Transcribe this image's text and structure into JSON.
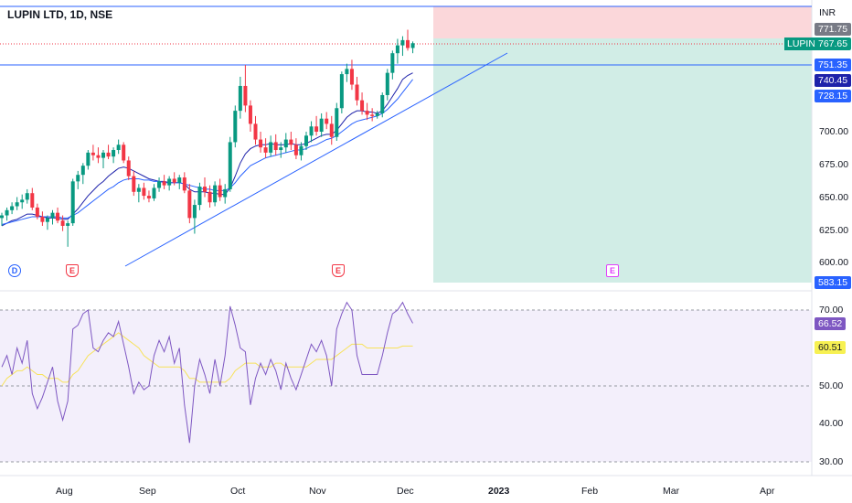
{
  "symbol_title": "LUPIN LTD, 1D, NSE",
  "currency": "INR",
  "symbol_tag": "LUPIN",
  "price_axis_labels": [
    "700.00",
    "675.00",
    "650.00",
    "625.00",
    "600.00"
  ],
  "price_tags": [
    {
      "label": "771.75",
      "value": 771.75,
      "color": "#787b86"
    },
    {
      "label": "767.65",
      "value": 767.65,
      "color": "#089981"
    },
    {
      "label": "751.35",
      "value": 751.35,
      "color": "#2962ff"
    },
    {
      "label": "740.45",
      "value": 740.45,
      "color": "#1e22aa"
    },
    {
      "label": "728.15",
      "value": 728.15,
      "color": "#2962ff"
    },
    {
      "label": "583.15",
      "value": 583.15,
      "color": "#2962ff"
    }
  ],
  "rsi_axis_labels": [
    "70.00",
    "50.00",
    "40.00",
    "30.00"
  ],
  "rsi_tags": [
    {
      "label": "66.52",
      "value": 66.52,
      "color": "#7e57c2",
      "text_color": "#ffffff"
    },
    {
      "label": "60.51",
      "value": 60.51,
      "color": "#f7f152",
      "text_color": "#131722"
    }
  ],
  "time_axis_labels": [
    "Aug",
    "Sep",
    "Oct",
    "Nov",
    "Dec",
    "2023",
    "Feb",
    "Mar",
    "Apr"
  ],
  "events": [
    "D",
    "E",
    "E",
    "E"
  ],
  "colors": {
    "up": "#089981",
    "down": "#f23645",
    "ma1": "#1e22aa",
    "ma2": "#2962ff",
    "trendline": "#2962ff",
    "rsi": "#7e57c2",
    "rsi_ma": "#f7e25a",
    "target_zone": "#d1ede6",
    "stop_zone": "#fbd7da"
  },
  "chart_data": {
    "type": "candlestick",
    "title": "LUPIN LTD, 1D, NSE",
    "price_range": [
      583,
      778
    ],
    "levels": {
      "stop": 777.5,
      "entry": 768.5,
      "support": 751.35,
      "target": 583.15
    },
    "candles": [
      [
        634,
        638,
        628,
        636
      ],
      [
        636,
        642,
        632,
        640
      ],
      [
        640,
        646,
        637,
        643
      ],
      [
        643,
        650,
        640,
        646
      ],
      [
        646,
        652,
        641,
        648
      ],
      [
        648,
        656,
        645,
        653
      ],
      [
        653,
        657,
        640,
        642
      ],
      [
        642,
        645,
        633,
        635
      ],
      [
        635,
        639,
        628,
        631
      ],
      [
        631,
        636,
        625,
        634
      ],
      [
        634,
        640,
        629,
        638
      ],
      [
        638,
        642,
        630,
        632
      ],
      [
        632,
        636,
        624,
        628
      ],
      [
        628,
        632,
        612,
        630
      ],
      [
        630,
        664,
        628,
        662
      ],
      [
        662,
        670,
        656,
        667
      ],
      [
        667,
        676,
        660,
        674
      ],
      [
        674,
        686,
        671,
        684
      ],
      [
        684,
        690,
        678,
        682
      ],
      [
        682,
        688,
        676,
        680
      ],
      [
        680,
        686,
        672,
        684
      ],
      [
        684,
        690,
        679,
        681
      ],
      [
        681,
        688,
        676,
        686
      ],
      [
        686,
        694,
        683,
        690
      ],
      [
        690,
        692,
        676,
        678
      ],
      [
        678,
        681,
        663,
        666
      ],
      [
        666,
        670,
        651,
        654
      ],
      [
        654,
        660,
        646,
        657
      ],
      [
        657,
        661,
        648,
        651
      ],
      [
        651,
        655,
        646,
        649
      ],
      [
        649,
        660,
        647,
        657
      ],
      [
        657,
        665,
        654,
        662
      ],
      [
        662,
        667,
        656,
        659
      ],
      [
        659,
        666,
        655,
        664
      ],
      [
        664,
        669,
        659,
        661
      ],
      [
        661,
        667,
        656,
        665
      ],
      [
        665,
        669,
        653,
        655
      ],
      [
        655,
        660,
        630,
        634
      ],
      [
        634,
        648,
        622,
        644
      ],
      [
        644,
        661,
        640,
        658
      ],
      [
        658,
        665,
        650,
        654
      ],
      [
        654,
        659,
        642,
        646
      ],
      [
        646,
        662,
        643,
        659
      ],
      [
        659,
        664,
        647,
        650
      ],
      [
        650,
        660,
        645,
        656
      ],
      [
        656,
        696,
        654,
        692
      ],
      [
        692,
        720,
        688,
        716
      ],
      [
        716,
        742,
        710,
        735
      ],
      [
        735,
        751,
        715,
        720
      ],
      [
        720,
        724,
        700,
        706
      ],
      [
        706,
        712,
        690,
        694
      ],
      [
        694,
        700,
        684,
        688
      ],
      [
        688,
        695,
        680,
        684
      ],
      [
        684,
        697,
        681,
        692
      ],
      [
        692,
        698,
        682,
        686
      ],
      [
        686,
        692,
        680,
        688
      ],
      [
        688,
        699,
        684,
        694
      ],
      [
        694,
        700,
        686,
        690
      ],
      [
        690,
        695,
        679,
        682
      ],
      [
        682,
        692,
        678,
        689
      ],
      [
        689,
        700,
        686,
        697
      ],
      [
        697,
        708,
        692,
        704
      ],
      [
        704,
        712,
        697,
        700
      ],
      [
        700,
        714,
        696,
        710
      ],
      [
        710,
        715,
        702,
        706
      ],
      [
        706,
        712,
        690,
        696
      ],
      [
        696,
        722,
        693,
        718
      ],
      [
        718,
        746,
        714,
        744
      ],
      [
        744,
        752,
        738,
        748
      ],
      [
        748,
        755,
        732,
        736
      ],
      [
        736,
        742,
        720,
        724
      ],
      [
        724,
        730,
        713,
        716
      ],
      [
        716,
        722,
        709,
        713
      ],
      [
        713,
        718,
        708,
        712
      ],
      [
        712,
        716,
        710,
        714
      ],
      [
        714,
        730,
        711,
        728
      ],
      [
        728,
        748,
        724,
        745
      ],
      [
        745,
        762,
        740,
        760
      ],
      [
        760,
        771,
        752,
        766
      ],
      [
        766,
        773,
        758,
        770
      ],
      [
        770,
        778,
        762,
        764
      ],
      [
        764,
        769,
        760,
        767.65
      ]
    ],
    "ma_fast": [
      628,
      630,
      632,
      633,
      635,
      637,
      637,
      636,
      635,
      634,
      634,
      634,
      633,
      633,
      637,
      641,
      646,
      651,
      655,
      659,
      662,
      666,
      669,
      672,
      673,
      672,
      670,
      668,
      666,
      664,
      663,
      662,
      662,
      661,
      661,
      661,
      660,
      656,
      654,
      654,
      654,
      653,
      653,
      652,
      652,
      657,
      666,
      676,
      683,
      687,
      689,
      690,
      690,
      691,
      690,
      690,
      690,
      691,
      690,
      690,
      691,
      693,
      695,
      697,
      698,
      698,
      701,
      706,
      711,
      714,
      716,
      716,
      715,
      715,
      714,
      716,
      721,
      727,
      733,
      740,
      743,
      745
    ],
    "ma_slow": [
      629,
      630,
      631,
      632,
      633,
      634,
      635,
      635,
      635,
      635,
      635,
      635,
      634,
      634,
      636,
      638,
      641,
      644,
      647,
      650,
      653,
      656,
      658,
      661,
      663,
      664,
      664,
      664,
      663,
      663,
      662,
      662,
      661,
      661,
      661,
      661,
      660,
      659,
      658,
      657,
      656,
      656,
      655,
      655,
      655,
      657,
      661,
      666,
      670,
      674,
      676,
      678,
      680,
      681,
      682,
      683,
      684,
      685,
      686,
      686,
      687,
      689,
      690,
      692,
      694,
      695,
      697,
      700,
      703,
      706,
      708,
      709,
      710,
      711,
      712,
      714,
      717,
      721,
      725,
      730,
      735,
      740
    ],
    "rsi": [
      55,
      58,
      53,
      60,
      56,
      62,
      48,
      44,
      47,
      51,
      55,
      46,
      41,
      46,
      65,
      66,
      69,
      70,
      60,
      59,
      62,
      64,
      63,
      67,
      61,
      55,
      48,
      51,
      49,
      50,
      58,
      62,
      59,
      63,
      56,
      60,
      45,
      35,
      50,
      57,
      53,
      48,
      57,
      50,
      58,
      71,
      66,
      60,
      59,
      45,
      52,
      56,
      53,
      57,
      54,
      49,
      56,
      52,
      49,
      53,
      57,
      61,
      59,
      62,
      58,
      50,
      65,
      69,
      72,
      70,
      58,
      53,
      53,
      53,
      53,
      58,
      64,
      69,
      70,
      72,
      69,
      66.52
    ],
    "rsi_ma": [
      50,
      52,
      53,
      54,
      54,
      55,
      54,
      53,
      53,
      52,
      52,
      52,
      51,
      51,
      53,
      54,
      56,
      58,
      59,
      60,
      61,
      62,
      63,
      64,
      63,
      62,
      61,
      60,
      58,
      57,
      56,
      55,
      55,
      55,
      55,
      55,
      54,
      52,
      52,
      51,
      51,
      51,
      51,
      51,
      51,
      52,
      54,
      55,
      56,
      56,
      56,
      55,
      55,
      55,
      56,
      56,
      55,
      55,
      55,
      55,
      55,
      56,
      57,
      57,
      57,
      57,
      58,
      59,
      60,
      61,
      61,
      61,
      60,
      60,
      60,
      60,
      60,
      60,
      60,
      60.5,
      60.5,
      60.51
    ],
    "rsi_levels": [
      70,
      50,
      30
    ],
    "rsi_range": [
      30,
      73
    ],
    "x_axis": [
      "Aug",
      "Sep",
      "Oct",
      "Nov",
      "Dec",
      "2023",
      "Feb",
      "Mar",
      "Apr"
    ]
  }
}
